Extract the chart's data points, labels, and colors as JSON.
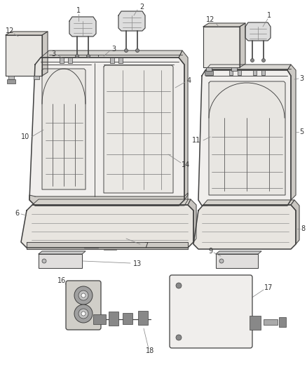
{
  "bg_color": "#ffffff",
  "line_color": "#404040",
  "label_color": "#333333",
  "callout_color": "#888888",
  "figsize": [
    4.38,
    5.33
  ],
  "dpi": 100,
  "lw_main": 1.1,
  "lw_thin": 0.65,
  "lw_callout": 0.55,
  "font_size": 7.0
}
